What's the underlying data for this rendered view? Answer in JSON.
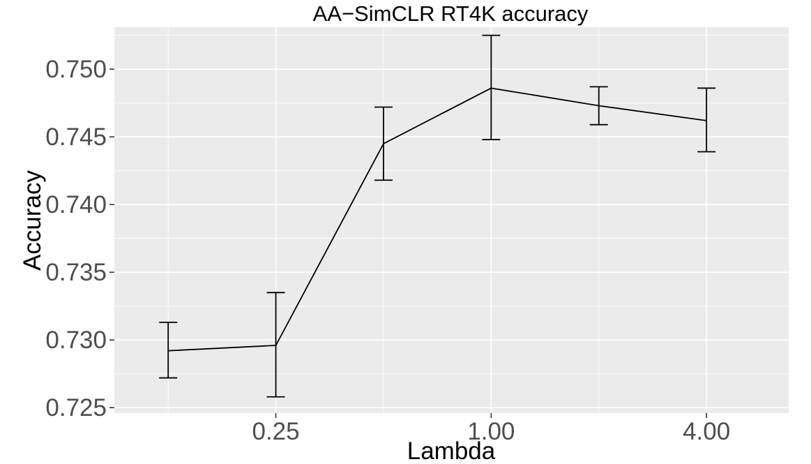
{
  "chart_data": {
    "type": "line",
    "title": "AA−SimCLR RT4K accuracy",
    "xlabel": "Lambda",
    "ylabel": "Accuracy",
    "x_scale": "log2",
    "x_ticks": [
      0.25,
      1.0,
      4.0
    ],
    "x_tick_labels": [
      "0.25",
      "1.00",
      "4.00"
    ],
    "y_ticks": [
      0.725,
      0.73,
      0.735,
      0.74,
      0.745,
      0.75
    ],
    "y_tick_labels": [
      "0.725",
      "0.730",
      "0.735",
      "0.740",
      "0.745",
      "0.750"
    ],
    "xlim": [
      0.0884,
      6.79
    ],
    "ylim": [
      0.7246,
      0.7531
    ],
    "grid": true,
    "series": [
      {
        "name": "Accuracy",
        "x": [
          0.125,
          0.25,
          0.5,
          1.0,
          2.0,
          4.0
        ],
        "y": [
          0.7292,
          0.7296,
          0.7445,
          0.7486,
          0.7473,
          0.7462
        ],
        "ymin": [
          0.7272,
          0.7258,
          0.7418,
          0.7448,
          0.7459,
          0.7439
        ],
        "ymax": [
          0.7313,
          0.7335,
          0.7472,
          0.7525,
          0.7487,
          0.7486
        ]
      }
    ]
  }
}
